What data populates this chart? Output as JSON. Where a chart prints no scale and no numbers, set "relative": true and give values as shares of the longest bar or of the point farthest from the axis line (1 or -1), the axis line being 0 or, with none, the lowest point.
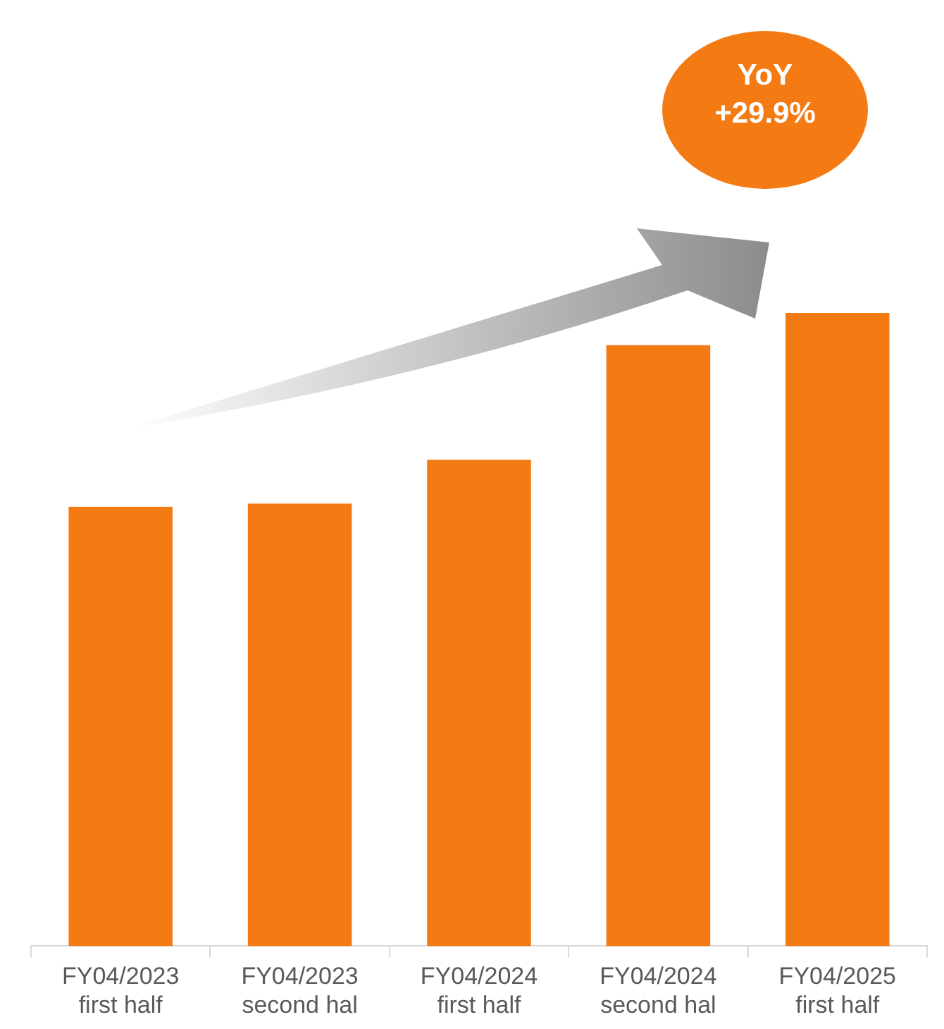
{
  "chart_data": {
    "type": "bar",
    "relative": true,
    "categories": [
      "FY04/2023 first half",
      "FY04/2023 second hal",
      "FY04/2024 first half",
      "FY04/2024 second hal",
      "FY04/2025 first half"
    ],
    "values": [
      0.694,
      0.699,
      0.768,
      0.949,
      1
    ],
    "color": "#f47a14",
    "annotations": [
      "YoY +29.9%"
    ],
    "grid": false,
    "legend": false
  }
}
